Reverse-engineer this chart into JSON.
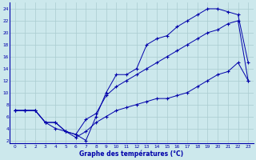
{
  "xlabel": "Graphe des températures (°C)",
  "bg_color": "#cce8ec",
  "grid_color": "#aaccd0",
  "line_color": "#0000aa",
  "xlim": [
    -0.5,
    23.5
  ],
  "ylim": [
    1.5,
    25
  ],
  "xticks": [
    0,
    1,
    2,
    3,
    4,
    5,
    6,
    7,
    8,
    9,
    10,
    11,
    12,
    13,
    14,
    15,
    16,
    17,
    18,
    19,
    20,
    21,
    22,
    23
  ],
  "yticks": [
    2,
    4,
    6,
    8,
    10,
    12,
    14,
    16,
    18,
    20,
    22,
    24
  ],
  "line1_x": [
    0,
    1,
    2,
    3,
    4,
    5,
    6,
    7,
    8,
    9,
    10,
    11,
    12,
    13,
    14,
    15,
    16,
    17,
    18,
    19,
    20,
    21,
    22,
    23
  ],
  "line1_y": [
    7,
    7,
    7,
    5,
    5,
    3.5,
    3,
    2,
    6,
    10,
    13,
    13,
    14,
    18,
    19,
    19.5,
    21,
    22,
    23,
    24,
    24,
    23.5,
    23,
    15
  ],
  "line2_x": [
    0,
    1,
    2,
    3,
    4,
    5,
    6,
    7,
    8,
    9,
    10,
    11,
    12,
    13,
    14,
    15,
    16,
    17,
    18,
    19,
    20,
    21,
    22,
    23
  ],
  "line2_y": [
    7,
    7,
    7,
    5,
    5,
    3.5,
    3,
    5.5,
    6.5,
    9.5,
    11,
    12,
    13,
    14,
    15,
    16,
    17,
    18,
    19,
    20,
    20.5,
    21.5,
    22,
    12
  ],
  "line3_x": [
    0,
    1,
    2,
    3,
    4,
    5,
    6,
    7,
    8,
    9,
    10,
    11,
    12,
    13,
    14,
    15,
    16,
    17,
    18,
    19,
    20,
    21,
    22,
    23
  ],
  "line3_y": [
    7,
    7,
    7,
    5,
    4,
    3.5,
    2.5,
    3.5,
    5,
    6,
    7,
    7.5,
    8,
    8.5,
    9,
    9,
    9.5,
    10,
    11,
    12,
    13,
    13.5,
    15,
    12
  ]
}
